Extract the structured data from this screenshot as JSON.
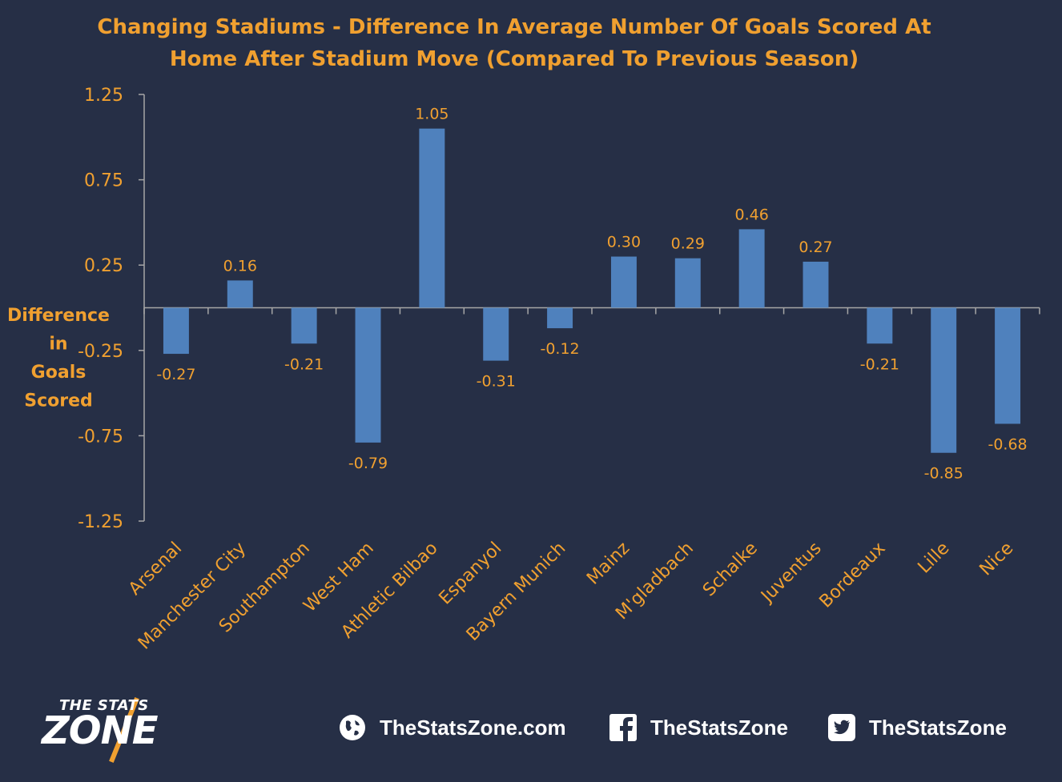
{
  "chart_data": {
    "type": "bar",
    "title_lines": [
      "Changing Stadiums - Difference In Average Number Of Goals Scored At",
      "Home After Stadium Move (Compared To Previous Season)"
    ],
    "ylabel_lines": [
      "Difference",
      "in",
      "Goals",
      "Scored"
    ],
    "categories": [
      "Arsenal",
      "Manchester City",
      "Southampton",
      "West Ham",
      "Athletic Bilbao",
      "Espanyol",
      "Bayern Munich",
      "Mainz",
      "M'gladbach",
      "Schalke",
      "Juventus",
      "Bordeaux",
      "Lille",
      "Nice"
    ],
    "values": [
      -0.27,
      0.16,
      -0.21,
      -0.79,
      1.05,
      -0.31,
      -0.12,
      0.3,
      0.29,
      0.46,
      0.27,
      -0.21,
      -0.85,
      -0.68
    ],
    "value_labels": [
      "-0.27",
      "0.16",
      "-0.21",
      "-0.79",
      "1.05",
      "-0.31",
      "-0.12",
      "0.30",
      "0.29",
      "0.46",
      "0.27",
      "-0.21",
      "-0.85",
      "-0.68"
    ],
    "yticks": [
      "1.25",
      "0.75",
      "0.25",
      "-0.25",
      "-0.75",
      "-1.25"
    ],
    "ylim": [
      -1.25,
      1.25
    ],
    "grid": false,
    "legend": "none"
  },
  "colors": {
    "background": "#262f46",
    "bar": "#4f81bd",
    "text": "#f0a030",
    "axis": "#a6a6a6"
  },
  "footer": {
    "logo_top": "THE STATS",
    "logo_main": "ZONE",
    "website": "TheStatsZone.com",
    "facebook": "TheStatsZone",
    "twitter": "TheStatsZone",
    "icons": [
      "globe-icon",
      "facebook-icon",
      "twitter-icon"
    ]
  }
}
